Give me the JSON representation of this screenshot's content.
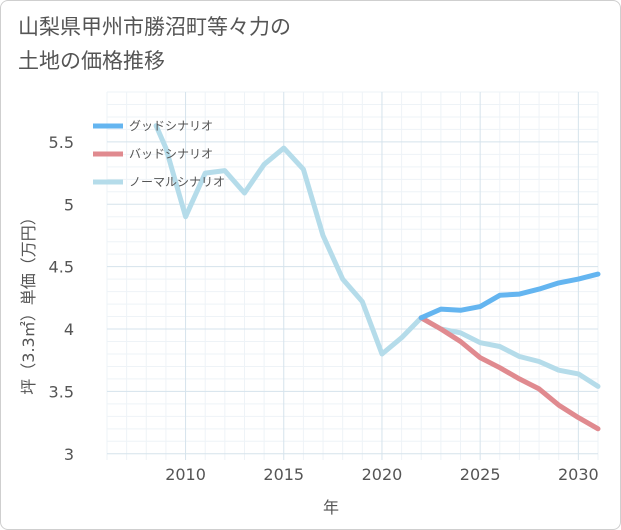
{
  "chart_data": {
    "type": "line",
    "title": "山梨県甲州市勝沼町等々力の\n土地の価格推移",
    "xlabel": "年",
    "ylabel": "坪（3.3㎡）単価（万円）",
    "xlim": [
      2006,
      2031
    ],
    "ylim": [
      2.95,
      5.9
    ],
    "x_ticks": [
      2010,
      2015,
      2020,
      2025,
      2030
    ],
    "y_ticks": [
      3,
      3.5,
      4,
      4.5,
      5,
      5.5
    ],
    "y_tick_labels": [
      "3",
      "3.5",
      "4",
      "4.5",
      "5",
      "5.5"
    ],
    "grid": true,
    "legend_position": "top-left",
    "series": [
      {
        "name": "グッドシナリオ",
        "color": "#64b5f0",
        "x": [
          2022,
          2023,
          2024,
          2025,
          2026,
          2027,
          2028,
          2029,
          2030,
          2031
        ],
        "y": [
          4.09,
          4.16,
          4.15,
          4.18,
          4.27,
          4.28,
          4.32,
          4.37,
          4.4,
          4.44
        ]
      },
      {
        "name": "バッドシナリオ",
        "color": "#e08a8f",
        "x": [
          2022,
          2023,
          2024,
          2025,
          2026,
          2027,
          2028,
          2029,
          2030,
          2031
        ],
        "y": [
          4.09,
          4.0,
          3.9,
          3.77,
          3.69,
          3.6,
          3.52,
          3.39,
          3.29,
          3.2
        ]
      },
      {
        "name": "ノーマルシナリオ",
        "color": "#b5dcea",
        "x": [
          2008.5,
          2009,
          2010,
          2011,
          2012,
          2013,
          2014,
          2015,
          2016,
          2017,
          2018,
          2019,
          2020,
          2021,
          2022,
          2023,
          2024,
          2025,
          2026,
          2027,
          2028,
          2029,
          2030,
          2031
        ],
        "y": [
          5.63,
          5.45,
          4.9,
          5.25,
          5.27,
          5.09,
          5.32,
          5.45,
          5.28,
          4.75,
          4.4,
          4.22,
          3.8,
          3.93,
          4.09,
          4.0,
          3.97,
          3.89,
          3.86,
          3.78,
          3.74,
          3.67,
          3.64,
          3.54
        ]
      }
    ]
  }
}
